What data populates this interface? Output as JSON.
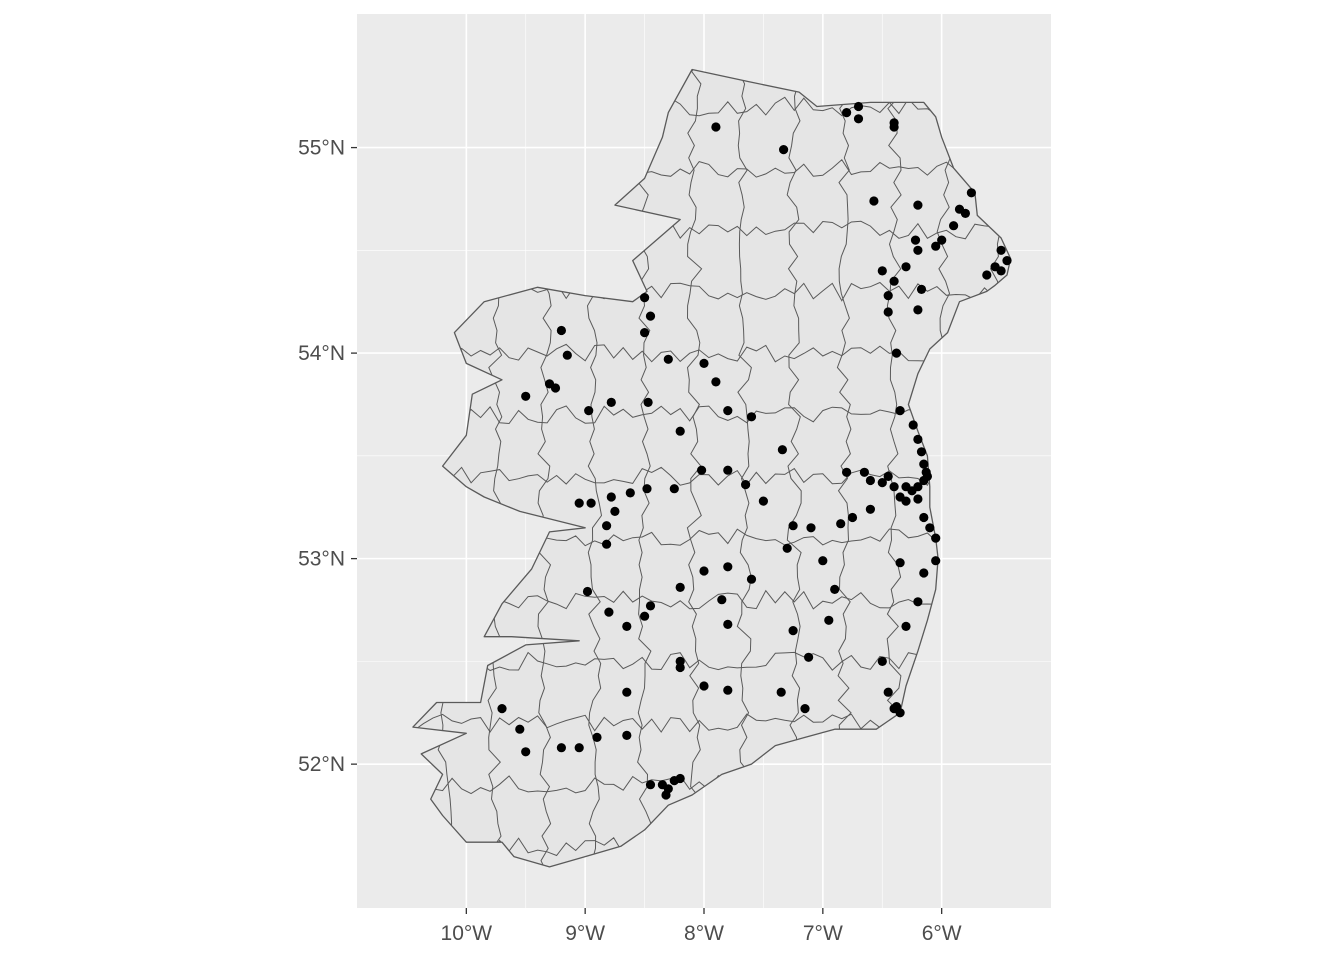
{
  "chart_data": {
    "type": "scatter",
    "title": "",
    "xlabel": "",
    "ylabel": "",
    "xlim": [
      -10.92,
      -5.08
    ],
    "ylim": [
      51.3,
      55.65
    ],
    "grid": true,
    "x_ticks": [
      {
        "value": -10,
        "label": "10°W"
      },
      {
        "value": -9,
        "label": "9°W"
      },
      {
        "value": -8,
        "label": "8°W"
      },
      {
        "value": -7,
        "label": "7°W"
      },
      {
        "value": -6,
        "label": "6°W"
      }
    ],
    "y_ticks": [
      {
        "value": 52,
        "label": "52°N"
      },
      {
        "value": 53,
        "label": "53°N"
      },
      {
        "value": 54,
        "label": "54°N"
      },
      {
        "value": 55,
        "label": "55°N"
      }
    ],
    "colors": {
      "panel": "#ebebeb",
      "grid": "#ffffff",
      "land": "#e5e5e5",
      "border": "#5a5a5a",
      "point": "#000000",
      "tick": "#4d4d4d"
    },
    "outline": [
      [
        -8.1,
        55.38
      ],
      [
        -7.62,
        55.32
      ],
      [
        -7.2,
        55.27
      ],
      [
        -7.05,
        55.2
      ],
      [
        -6.6,
        55.22
      ],
      [
        -6.15,
        55.22
      ],
      [
        -6.05,
        55.15
      ],
      [
        -6.0,
        55.05
      ],
      [
        -5.9,
        54.9
      ],
      [
        -5.78,
        54.82
      ],
      [
        -5.72,
        54.78
      ],
      [
        -5.7,
        54.67
      ],
      [
        -5.5,
        54.56
      ],
      [
        -5.42,
        54.46
      ],
      [
        -5.45,
        54.38
      ],
      [
        -5.55,
        54.33
      ],
      [
        -5.62,
        54.3
      ],
      [
        -5.85,
        54.25
      ],
      [
        -5.95,
        54.1
      ],
      [
        -6.1,
        54.02
      ],
      [
        -6.2,
        53.9
      ],
      [
        -6.28,
        53.75
      ],
      [
        -6.2,
        53.62
      ],
      [
        -6.12,
        53.5
      ],
      [
        -6.1,
        53.35
      ],
      [
        -6.1,
        53.25
      ],
      [
        -6.05,
        53.1
      ],
      [
        -6.03,
        53.0
      ],
      [
        -6.05,
        52.85
      ],
      [
        -6.12,
        52.7
      ],
      [
        -6.2,
        52.55
      ],
      [
        -6.3,
        52.38
      ],
      [
        -6.35,
        52.25
      ],
      [
        -6.55,
        52.17
      ],
      [
        -6.9,
        52.17
      ],
      [
        -7.15,
        52.13
      ],
      [
        -7.4,
        52.09
      ],
      [
        -7.6,
        52.0
      ],
      [
        -7.85,
        51.95
      ],
      [
        -8.1,
        51.85
      ],
      [
        -8.3,
        51.8
      ],
      [
        -8.5,
        51.68
      ],
      [
        -8.7,
        51.6
      ],
      [
        -9.0,
        51.55
      ],
      [
        -9.3,
        51.5
      ],
      [
        -9.6,
        51.55
      ],
      [
        -9.7,
        51.62
      ],
      [
        -10.0,
        51.62
      ],
      [
        -10.2,
        51.75
      ],
      [
        -10.3,
        51.83
      ],
      [
        -10.2,
        51.95
      ],
      [
        -10.38,
        52.05
      ],
      [
        -10.0,
        52.15
      ],
      [
        -10.45,
        52.18
      ],
      [
        -10.25,
        52.3
      ],
      [
        -9.88,
        52.3
      ],
      [
        -9.82,
        52.48
      ],
      [
        -9.5,
        52.58
      ],
      [
        -9.05,
        52.6
      ],
      [
        -9.62,
        52.62
      ],
      [
        -9.85,
        52.62
      ],
      [
        -9.7,
        52.78
      ],
      [
        -9.45,
        52.95
      ],
      [
        -9.3,
        53.13
      ],
      [
        -9.0,
        53.15
      ],
      [
        -9.55,
        53.23
      ],
      [
        -9.85,
        53.3
      ],
      [
        -10.0,
        53.35
      ],
      [
        -10.2,
        53.45
      ],
      [
        -10.0,
        53.6
      ],
      [
        -9.95,
        53.8
      ],
      [
        -9.7,
        53.87
      ],
      [
        -10.0,
        53.95
      ],
      [
        -10.1,
        54.1
      ],
      [
        -9.85,
        54.25
      ],
      [
        -9.4,
        54.32
      ],
      [
        -9.0,
        54.28
      ],
      [
        -8.6,
        54.25
      ],
      [
        -8.48,
        54.3
      ],
      [
        -8.6,
        54.45
      ],
      [
        -8.2,
        54.65
      ],
      [
        -8.75,
        54.72
      ],
      [
        -8.5,
        54.85
      ],
      [
        -8.35,
        55.05
      ],
      [
        -8.3,
        55.17
      ],
      [
        -8.1,
        55.38
      ]
    ],
    "points": [
      [
        -7.9,
        55.1
      ],
      [
        -6.8,
        55.17
      ],
      [
        -6.7,
        55.2
      ],
      [
        -6.7,
        55.14
      ],
      [
        -6.4,
        55.12
      ],
      [
        -6.4,
        55.1
      ],
      [
        -7.33,
        54.99
      ],
      [
        -5.75,
        54.78
      ],
      [
        -6.2,
        54.72
      ],
      [
        -6.57,
        54.74
      ],
      [
        -5.85,
        54.7
      ],
      [
        -5.8,
        54.68
      ],
      [
        -5.9,
        54.62
      ],
      [
        -6.0,
        54.55
      ],
      [
        -6.05,
        54.52
      ],
      [
        -6.22,
        54.55
      ],
      [
        -6.2,
        54.5
      ],
      [
        -5.5,
        54.5
      ],
      [
        -5.45,
        54.45
      ],
      [
        -5.5,
        54.4
      ],
      [
        -5.55,
        54.42
      ],
      [
        -5.62,
        54.38
      ],
      [
        -6.5,
        54.4
      ],
      [
        -6.4,
        54.35
      ],
      [
        -6.3,
        54.42
      ],
      [
        -6.45,
        54.28
      ],
      [
        -6.17,
        54.31
      ],
      [
        -6.45,
        54.2
      ],
      [
        -6.2,
        54.21
      ],
      [
        -6.38,
        54.0
      ],
      [
        -8.5,
        54.27
      ],
      [
        -8.45,
        54.18
      ],
      [
        -8.5,
        54.1
      ],
      [
        -9.2,
        54.11
      ],
      [
        -9.15,
        53.99
      ],
      [
        -9.3,
        53.85
      ],
      [
        -9.25,
        53.83
      ],
      [
        -9.5,
        53.79
      ],
      [
        -8.97,
        53.72
      ],
      [
        -8.78,
        53.76
      ],
      [
        -8.47,
        53.76
      ],
      [
        -8.2,
        53.62
      ],
      [
        -8.3,
        53.97
      ],
      [
        -8.0,
        53.95
      ],
      [
        -7.9,
        53.86
      ],
      [
        -7.8,
        53.72
      ],
      [
        -7.6,
        53.69
      ],
      [
        -7.34,
        53.53
      ],
      [
        -6.35,
        53.72
      ],
      [
        -6.24,
        53.65
      ],
      [
        -6.2,
        53.58
      ],
      [
        -6.17,
        53.52
      ],
      [
        -6.15,
        53.46
      ],
      [
        -6.13,
        53.42
      ],
      [
        -6.12,
        53.4
      ],
      [
        -6.15,
        53.38
      ],
      [
        -6.2,
        53.35
      ],
      [
        -6.25,
        53.33
      ],
      [
        -6.3,
        53.35
      ],
      [
        -6.4,
        53.35
      ],
      [
        -6.45,
        53.4
      ],
      [
        -6.5,
        53.37
      ],
      [
        -6.6,
        53.38
      ],
      [
        -6.8,
        53.42
      ],
      [
        -6.65,
        53.42
      ],
      [
        -6.35,
        53.3
      ],
      [
        -6.3,
        53.28
      ],
      [
        -6.2,
        53.29
      ],
      [
        -6.15,
        53.2
      ],
      [
        -6.1,
        53.15
      ],
      [
        -6.05,
        53.1
      ],
      [
        -6.05,
        52.99
      ],
      [
        -6.15,
        52.93
      ],
      [
        -6.35,
        52.98
      ],
      [
        -6.6,
        53.24
      ],
      [
        -6.75,
        53.2
      ],
      [
        -6.85,
        53.17
      ],
      [
        -7.1,
        53.15
      ],
      [
        -7.25,
        53.16
      ],
      [
        -7.3,
        53.05
      ],
      [
        -7.0,
        52.99
      ],
      [
        -6.9,
        52.85
      ],
      [
        -6.95,
        52.7
      ],
      [
        -7.25,
        52.65
      ],
      [
        -7.12,
        52.52
      ],
      [
        -7.15,
        52.27
      ],
      [
        -7.35,
        52.35
      ],
      [
        -7.8,
        52.36
      ],
      [
        -8.0,
        52.38
      ],
      [
        -8.2,
        52.5
      ],
      [
        -8.2,
        52.47
      ],
      [
        -8.65,
        52.35
      ],
      [
        -8.65,
        52.14
      ],
      [
        -8.9,
        52.13
      ],
      [
        -9.05,
        52.08
      ],
      [
        -9.2,
        52.08
      ],
      [
        -9.5,
        52.06
      ],
      [
        -9.55,
        52.17
      ],
      [
        -9.7,
        52.27
      ],
      [
        -8.45,
        51.9
      ],
      [
        -8.35,
        51.9
      ],
      [
        -8.3,
        51.88
      ],
      [
        -8.32,
        51.85
      ],
      [
        -8.25,
        51.92
      ],
      [
        -8.2,
        51.93
      ],
      [
        -6.45,
        52.35
      ],
      [
        -6.38,
        52.28
      ],
      [
        -6.4,
        52.27
      ],
      [
        -6.35,
        52.25
      ],
      [
        -6.5,
        52.5
      ],
      [
        -6.3,
        52.67
      ],
      [
        -6.2,
        52.79
      ],
      [
        -8.98,
        52.84
      ],
      [
        -8.8,
        52.74
      ],
      [
        -8.65,
        52.67
      ],
      [
        -8.5,
        52.72
      ],
      [
        -8.45,
        52.77
      ],
      [
        -8.2,
        52.86
      ],
      [
        -8.0,
        52.94
      ],
      [
        -7.8,
        52.96
      ],
      [
        -7.6,
        52.9
      ],
      [
        -7.85,
        52.8
      ],
      [
        -7.8,
        52.68
      ],
      [
        -7.8,
        53.43
      ],
      [
        -7.65,
        53.36
      ],
      [
        -7.5,
        53.28
      ],
      [
        -8.02,
        53.43
      ],
      [
        -8.25,
        53.34
      ],
      [
        -8.48,
        53.34
      ],
      [
        -8.62,
        53.32
      ],
      [
        -8.78,
        53.3
      ],
      [
        -8.75,
        53.23
      ],
      [
        -9.05,
        53.27
      ],
      [
        -8.95,
        53.27
      ],
      [
        -8.82,
        53.16
      ],
      [
        -8.82,
        53.07
      ]
    ]
  }
}
